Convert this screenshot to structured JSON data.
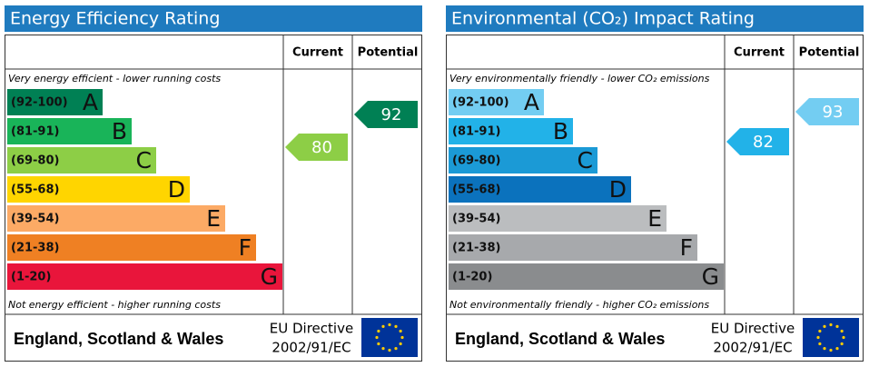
{
  "panels": [
    {
      "title": "Energy Efficiency Rating",
      "columns": [
        "Current",
        "Potential"
      ],
      "top_note": "Very energy efficient - lower running costs",
      "bottom_note": "Not energy efficient - higher running costs",
      "bands": [
        {
          "range": "(92-100)",
          "letter": "A",
          "color": "#008054"
        },
        {
          "range": "(81-91)",
          "letter": "B",
          "color": "#19b459"
        },
        {
          "range": "(69-80)",
          "letter": "C",
          "color": "#8dce46"
        },
        {
          "range": "(55-68)",
          "letter": "D",
          "color": "#ffd500"
        },
        {
          "range": "(39-54)",
          "letter": "E",
          "color": "#fcaa65"
        },
        {
          "range": "(21-38)",
          "letter": "F",
          "color": "#ef8023"
        },
        {
          "range": "(1-20)",
          "letter": "G",
          "color": "#e9153b"
        }
      ],
      "current": 80,
      "current_color": "#8dce46",
      "potential": 92,
      "potential_color": "#008054",
      "region": "England, Scotland & Wales",
      "directive": [
        "EU Directive",
        "2002/91/EC"
      ]
    },
    {
      "title": "Environmental (CO₂) Impact Rating",
      "columns": [
        "Current",
        "Potential"
      ],
      "top_note": "Very environmentally friendly - lower CO₂ emissions",
      "bottom_note": "Not environmentally friendly - higher CO₂ emissions",
      "bands": [
        {
          "range": "(92-100)",
          "letter": "A",
          "color": "#73cdf2"
        },
        {
          "range": "(81-91)",
          "letter": "B",
          "color": "#22b2e8"
        },
        {
          "range": "(69-80)",
          "letter": "C",
          "color": "#1b9ad6"
        },
        {
          "range": "(55-68)",
          "letter": "D",
          "color": "#0b72bd"
        },
        {
          "range": "(39-54)",
          "letter": "E",
          "color": "#bbbdbf"
        },
        {
          "range": "(21-38)",
          "letter": "F",
          "color": "#a7a9ac"
        },
        {
          "range": "(1-20)",
          "letter": "G",
          "color": "#8a8c8e"
        }
      ],
      "current": 82,
      "current_color": "#22b2e8",
      "potential": 93,
      "potential_color": "#73cdf2",
      "region": "England, Scotland & Wales",
      "directive": [
        "EU Directive",
        "2002/91/EC"
      ]
    }
  ]
}
